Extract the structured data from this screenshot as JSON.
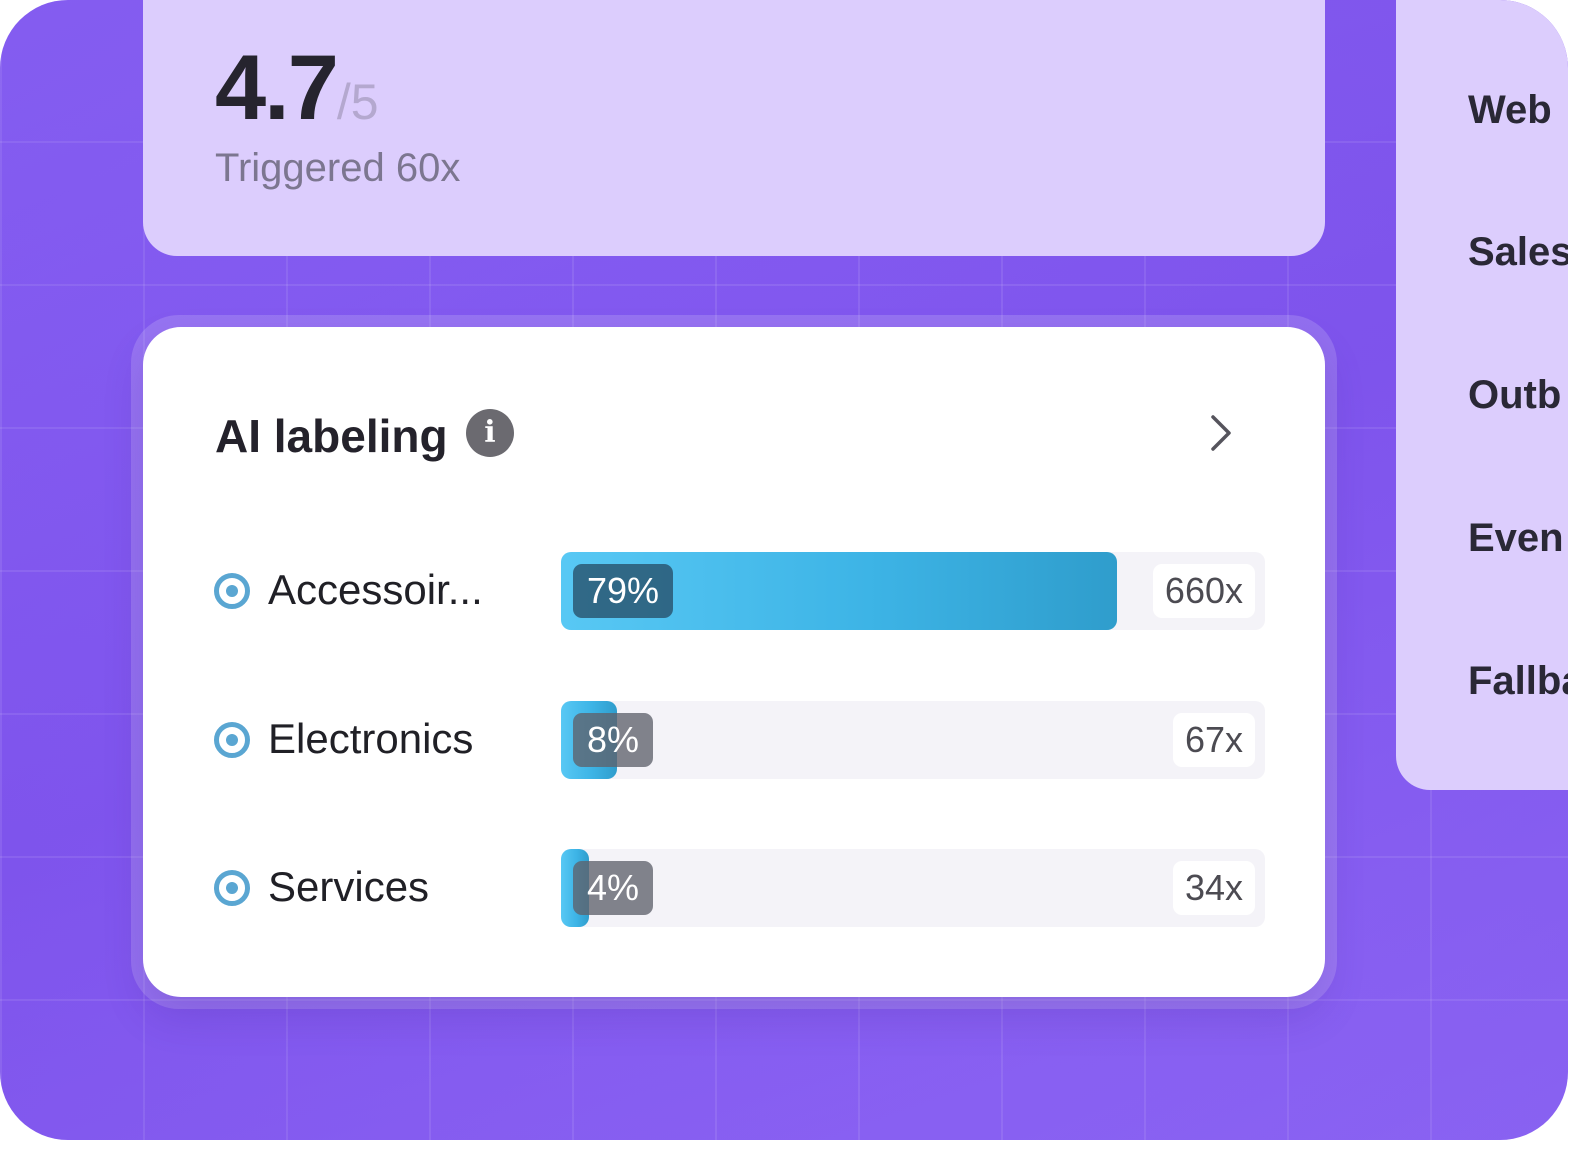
{
  "rating": {
    "value": "4.7",
    "max": "/5",
    "triggered": "Triggered 60x"
  },
  "side_list": {
    "items": [
      {
        "label": "Web"
      },
      {
        "label": "Sales"
      },
      {
        "label": "Outb"
      },
      {
        "label": "Even"
      },
      {
        "label": "Fallba"
      }
    ]
  },
  "ai_labeling": {
    "title": "AI labeling",
    "info_icon": "info-icon",
    "chevron_icon": "chevron-right-icon",
    "accent_color": "#3db4e6",
    "rows": [
      {
        "label": "Accessoir...",
        "percent": "79%",
        "fraction": 0.79,
        "count": "660x"
      },
      {
        "label": "Electronics",
        "percent": "8%",
        "fraction": 0.08,
        "count": "67x"
      },
      {
        "label": "Services",
        "percent": "4%",
        "fraction": 0.04,
        "count": "34x"
      }
    ]
  }
}
